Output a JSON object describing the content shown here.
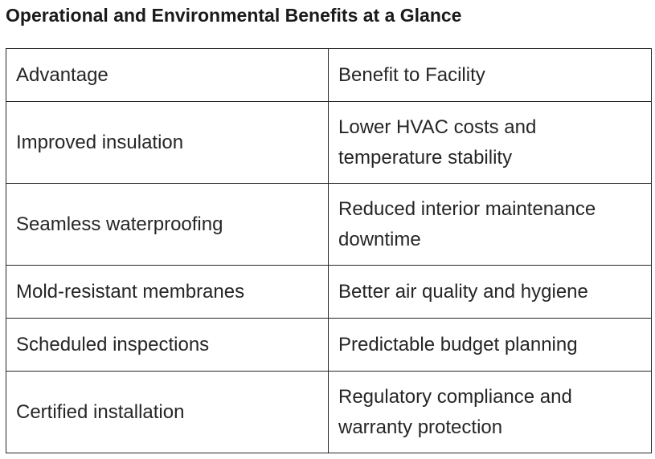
{
  "title": "Operational and Environmental Benefits at a Glance",
  "table": {
    "headers": [
      "Advantage",
      "Benefit to Facility"
    ],
    "rows": [
      {
        "advantage": "Improved insulation",
        "benefit": "Lower HVAC costs and temperature stability"
      },
      {
        "advantage": "Seamless waterproofing",
        "benefit": "Reduced interior maintenance downtime"
      },
      {
        "advantage": "Mold-resistant membranes",
        "benefit": "Better air quality and hygiene"
      },
      {
        "advantage": "Scheduled inspections",
        "benefit": "Predictable budget planning"
      },
      {
        "advantage": "Certified installation",
        "benefit": "Regulatory compliance and warranty protection"
      }
    ]
  }
}
